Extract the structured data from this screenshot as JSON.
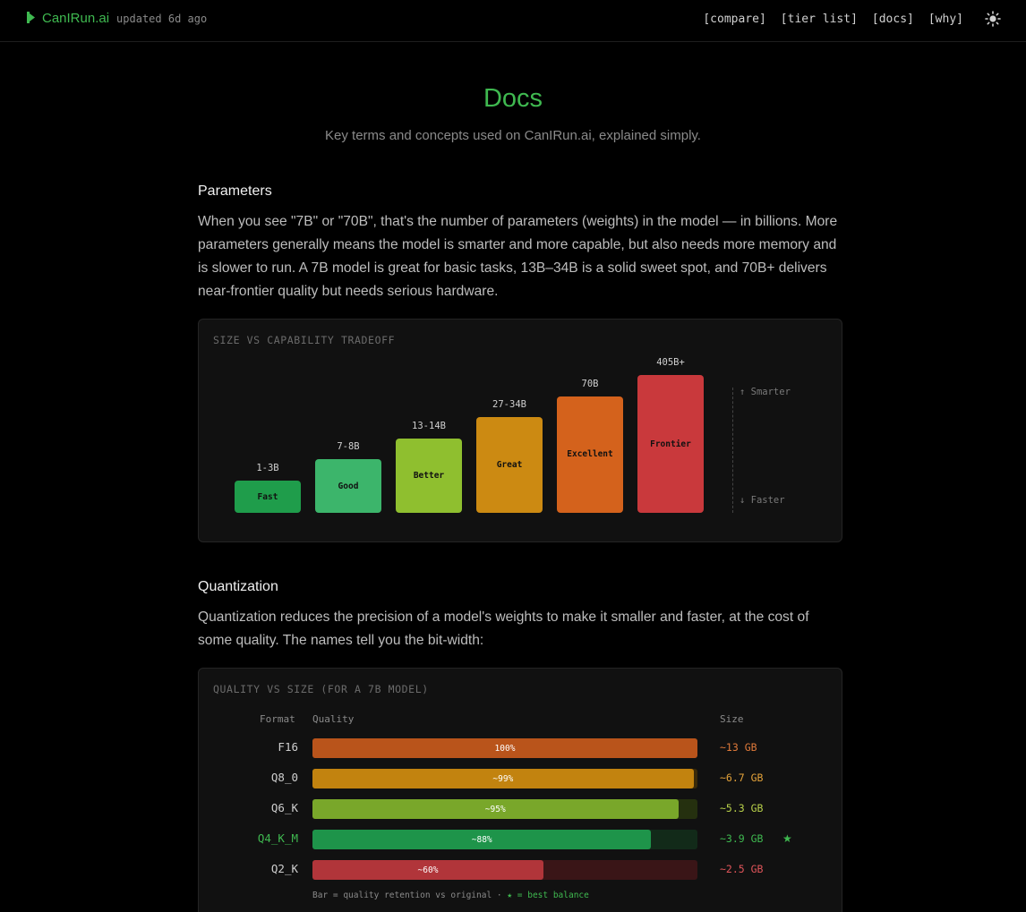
{
  "header": {
    "brand": "CanIRun.ai",
    "updated": "updated 6d ago",
    "nav": [
      "[compare]",
      "[tier list]",
      "[docs]",
      "[why]"
    ],
    "theme_icon": "sun-icon"
  },
  "page": {
    "title": "Docs",
    "subtitle": "Key terms and concepts used on CanIRun.ai, explained simply."
  },
  "parameters": {
    "title": "Parameters",
    "body": "When you see \"7B\" or \"70B\", that's the number of parameters (weights) in the model — in billions. More parameters generally means the model is smarter and more capable, but also needs more memory and is slower to run. A 7B model is great for basic tasks, 13B–34B is a solid sweet spot, and 70B+ delivers near-frontier quality but needs serious hardware.",
    "chart_title": "SIZE VS CAPABILITY TRADEOFF",
    "axis_top": "↑ Smarter",
    "axis_bottom": "↓ Faster"
  },
  "quantization": {
    "title": "Quantization",
    "body": "Quantization reduces the precision of a model's weights to make it smaller and faster, at the cost of some quality. The names tell you the bit-width:",
    "table_title": "QUALITY VS SIZE (FOR A 7B MODEL)",
    "col_format": "Format",
    "col_quality": "Quality",
    "col_size": "Size",
    "footnote_prefix": "Bar = quality retention vs original · ",
    "footnote_star": "★ = best balance",
    "star": "★"
  },
  "chart_data": [
    {
      "type": "bar",
      "title": "SIZE VS CAPABILITY TRADEOFF",
      "categories": [
        "1-3B",
        "7-8B",
        "13-14B",
        "27-34B",
        "70B",
        "405B+"
      ],
      "bar_labels": [
        "Fast",
        "Good",
        "Better",
        "Great",
        "Excellent",
        "Frontier"
      ],
      "values": [
        1,
        2,
        3,
        4,
        5,
        6
      ],
      "colors": [
        "#1f9d4b",
        "#3cb56b",
        "#8fbf2f",
        "#cc8a12",
        "#d4621c",
        "#c9393c"
      ]
    },
    {
      "type": "bar",
      "title": "QUALITY VS SIZE (FOR A 7B MODEL)",
      "categories": [
        "F16",
        "Q8_0",
        "Q6_K",
        "Q4_K_M",
        "Q2_K"
      ],
      "quality_labels": [
        "100%",
        "~99%",
        "~95%",
        "~88%",
        "~60%"
      ],
      "quality": [
        100,
        99,
        95,
        88,
        60
      ],
      "sizes": [
        "~13 GB",
        "~6.7 GB",
        "~5.3 GB",
        "~3.9 GB",
        "~2.5 GB"
      ],
      "best": "Q4_K_M",
      "colors": [
        "#b9541b",
        "#c2830f",
        "#79a72a",
        "#1e944a",
        "#b1353a"
      ],
      "track_colors": [
        "#3a1e0e",
        "#3a2a09",
        "#25300f",
        "#122a19",
        "#3a1517"
      ],
      "size_colors": [
        "#e07a3a",
        "#e3a23a",
        "#b8d04a",
        "#3fb950",
        "#e0555a"
      ]
    }
  ]
}
